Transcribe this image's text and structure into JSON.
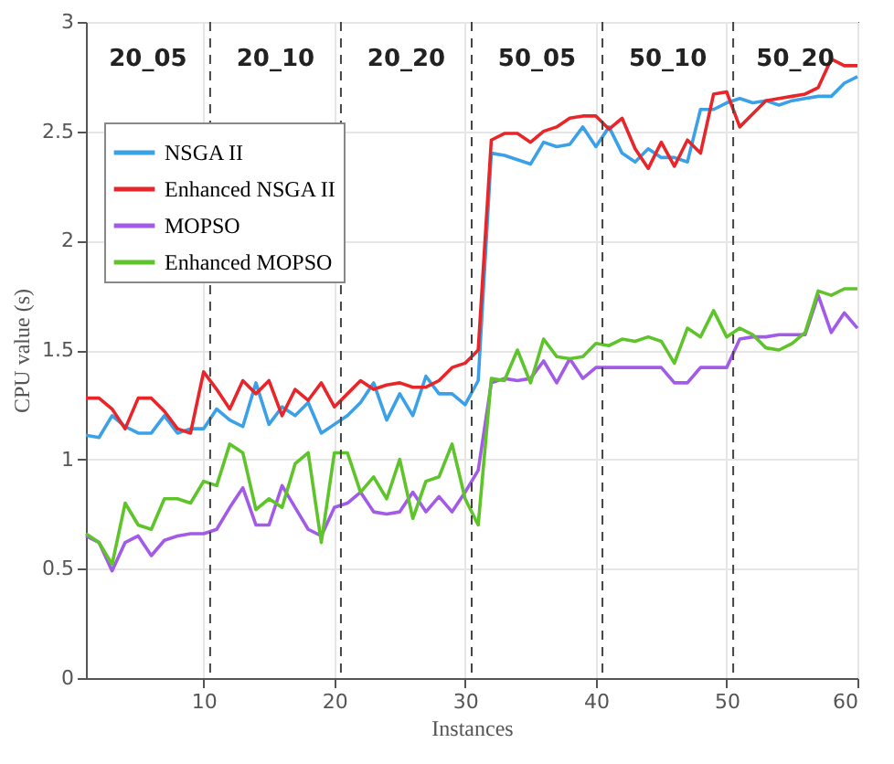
{
  "chart_data": {
    "type": "line",
    "xlabel": "Instances",
    "ylabel": "CPU value (s)",
    "x": [
      1,
      2,
      3,
      4,
      5,
      6,
      7,
      8,
      9,
      10,
      11,
      12,
      13,
      14,
      15,
      16,
      17,
      18,
      19,
      20,
      21,
      22,
      23,
      24,
      25,
      26,
      27,
      28,
      29,
      30,
      31,
      32,
      33,
      34,
      35,
      36,
      37,
      38,
      39,
      40,
      41,
      42,
      43,
      44,
      45,
      46,
      47,
      48,
      49,
      50,
      51,
      52,
      53,
      54,
      55,
      56,
      57,
      58,
      59,
      60
    ],
    "series": [
      {
        "name": "NSGA II",
        "color": "#3aa0e8",
        "values": [
          1.11,
          1.1,
          1.2,
          1.15,
          1.12,
          1.12,
          1.2,
          1.12,
          1.14,
          1.14,
          1.23,
          1.18,
          1.15,
          1.35,
          1.16,
          1.24,
          1.2,
          1.26,
          1.12,
          1.16,
          1.2,
          1.26,
          1.35,
          1.18,
          1.3,
          1.2,
          1.38,
          1.3,
          1.3,
          1.25,
          1.36,
          2.4,
          2.39,
          2.37,
          2.35,
          2.45,
          2.43,
          2.44,
          2.52,
          2.43,
          2.52,
          2.4,
          2.36,
          2.42,
          2.38,
          2.38,
          2.36,
          2.6,
          2.6,
          2.63,
          2.65,
          2.63,
          2.64,
          2.62,
          2.64,
          2.65,
          2.66,
          2.66,
          2.72,
          2.75
        ]
      },
      {
        "name": "Enhanced NSGA II",
        "color": "#e8262a",
        "values": [
          1.28,
          1.28,
          1.23,
          1.14,
          1.28,
          1.28,
          1.22,
          1.14,
          1.12,
          1.4,
          1.32,
          1.23,
          1.36,
          1.3,
          1.36,
          1.2,
          1.32,
          1.27,
          1.35,
          1.24,
          1.3,
          1.36,
          1.32,
          1.34,
          1.35,
          1.33,
          1.33,
          1.36,
          1.42,
          1.44,
          1.5,
          2.46,
          2.49,
          2.49,
          2.45,
          2.5,
          2.52,
          2.56,
          2.57,
          2.57,
          2.51,
          2.56,
          2.42,
          2.33,
          2.45,
          2.34,
          2.46,
          2.4,
          2.67,
          2.68,
          2.52,
          2.58,
          2.64,
          2.65,
          2.66,
          2.67,
          2.7,
          2.83,
          2.8,
          2.8
        ]
      },
      {
        "name": "MOPSO",
        "color": "#a25be8",
        "values": [
          0.65,
          0.62,
          0.49,
          0.62,
          0.65,
          0.56,
          0.63,
          0.65,
          0.66,
          0.66,
          0.68,
          0.78,
          0.87,
          0.7,
          0.7,
          0.88,
          0.78,
          0.68,
          0.65,
          0.78,
          0.8,
          0.85,
          0.76,
          0.75,
          0.76,
          0.85,
          0.76,
          0.83,
          0.76,
          0.85,
          0.95,
          1.35,
          1.37,
          1.36,
          1.37,
          1.45,
          1.35,
          1.46,
          1.37,
          1.42,
          1.42,
          1.42,
          1.42,
          1.42,
          1.42,
          1.35,
          1.35,
          1.42,
          1.42,
          1.42,
          1.55,
          1.56,
          1.56,
          1.57,
          1.57,
          1.57,
          1.75,
          1.58,
          1.67,
          1.6
        ]
      },
      {
        "name": "Enhanced MOPSO",
        "color": "#5ec42a",
        "values": [
          0.66,
          0.62,
          0.52,
          0.8,
          0.7,
          0.68,
          0.82,
          0.82,
          0.8,
          0.9,
          0.88,
          1.07,
          1.03,
          0.77,
          0.82,
          0.78,
          0.98,
          1.03,
          0.62,
          1.03,
          1.03,
          0.85,
          0.92,
          0.82,
          1,
          0.73,
          0.9,
          0.92,
          1.07,
          0.82,
          0.7,
          1.37,
          1.36,
          1.5,
          1.35,
          1.55,
          1.47,
          1.46,
          1.47,
          1.53,
          1.52,
          1.55,
          1.54,
          1.56,
          1.54,
          1.44,
          1.6,
          1.56,
          1.68,
          1.56,
          1.6,
          1.57,
          1.51,
          1.5,
          1.53,
          1.58,
          1.77,
          1.75,
          1.78,
          1.78
        ]
      }
    ],
    "xlim": [
      1,
      60
    ],
    "xticks": [
      10,
      20,
      30,
      40,
      50,
      60
    ],
    "ylim": [
      0,
      3
    ],
    "yticks": [
      0,
      0.5,
      1,
      1.5,
      2,
      2.5,
      3
    ],
    "grid": true,
    "legend": "top left",
    "line_style": "solid",
    "ref_lines": [
      {
        "axis": "x",
        "value": 10.5,
        "line_style": "dashed",
        "color": "#444444"
      },
      {
        "axis": "x",
        "value": 20.5,
        "line_style": "dashed",
        "color": "#444444"
      },
      {
        "axis": "x",
        "value": 30.5,
        "line_style": "dashed",
        "color": "#444444"
      },
      {
        "axis": "x",
        "value": 40.5,
        "line_style": "dashed",
        "color": "#444444"
      },
      {
        "axis": "x",
        "value": 50.5,
        "line_style": "dashed",
        "color": "#444444"
      }
    ],
    "annotations": [
      "20_05",
      "20_10",
      "20_20",
      "50_05",
      "50_10",
      "50_20"
    ]
  }
}
